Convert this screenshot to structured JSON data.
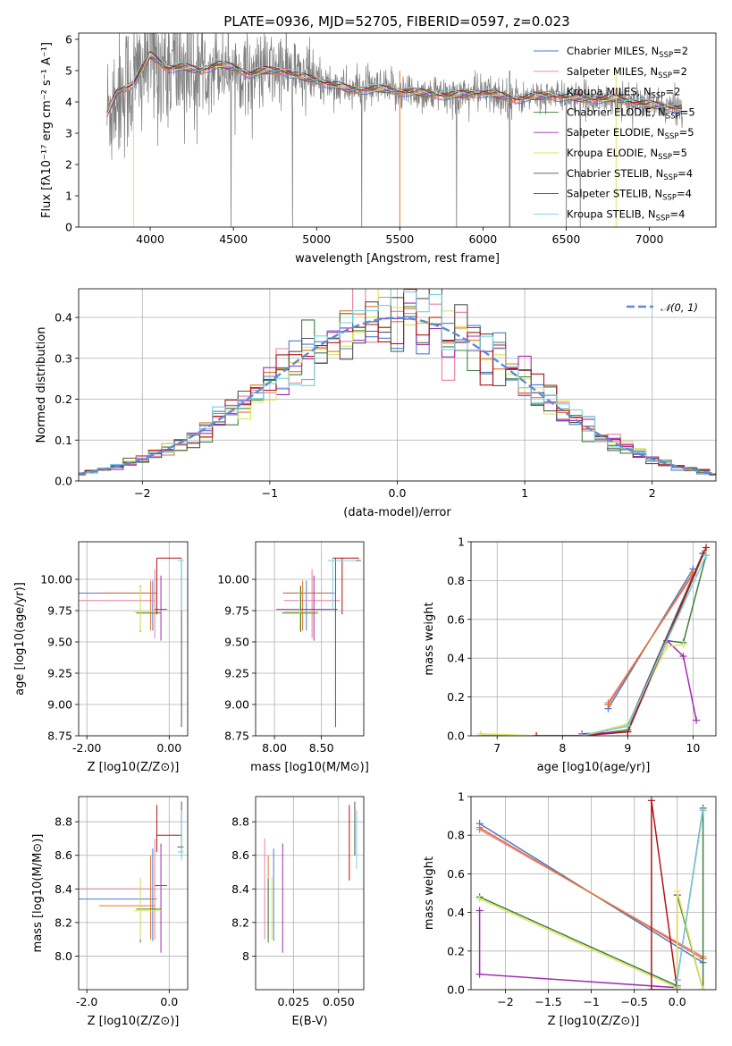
{
  "figure_title": "PLATE=0936, MJD=52705, FIBERID=0597, z=0.023",
  "model_names": [
    "Chabrier MILES",
    "Salpeter MILES",
    "Kroupa MILES",
    "Chabrier ELODIE",
    "Salpeter ELODIE",
    "Kroupa ELODIE",
    "Chabrier STELIB",
    "Salpeter STELIB",
    "Kroupa STELIB"
  ],
  "n_ssp": [
    2,
    2,
    2,
    5,
    5,
    5,
    4,
    4,
    4
  ],
  "colors": {
    "model": [
      "#4e79d4",
      "#ea7fa0",
      "#e3762a",
      "#3f7f3f",
      "#a12bb5",
      "#e2e45a",
      "#555555",
      "#b21414",
      "#76d0dc"
    ],
    "data": "#7f7f7f",
    "normal": "#5b8bd8",
    "grid": "#b0b0b0"
  },
  "chart_data": [
    {
      "id": "spectrum",
      "type": "line",
      "xlabel": "wavelength [Angstrom, rest frame]",
      "ylabel": "Flux [fλ10⁻¹⁷ erg cm⁻² s⁻¹ A⁻¹]",
      "xlim": [
        3570,
        7400
      ],
      "ylim": [
        0,
        6.2
      ],
      "xticks": [
        4000,
        4500,
        5000,
        5500,
        6000,
        6500,
        7000
      ],
      "yticks": [
        0,
        1,
        2,
        3,
        4,
        5,
        6
      ],
      "grid": false,
      "legend": "upper right",
      "continuum": {
        "x": [
          3740,
          3800,
          3900,
          4000,
          4100,
          4200,
          4300,
          4400,
          4500,
          4600,
          4700,
          4800,
          4900,
          5000,
          5200,
          5400,
          5600,
          5800,
          6000,
          6200,
          6400,
          6600,
          6800,
          7000,
          7200
        ],
        "y": [
          3.6,
          4.3,
          4.6,
          5.5,
          5.1,
          5.1,
          5.0,
          5.2,
          5.1,
          4.9,
          5.0,
          5.0,
          4.8,
          4.7,
          4.4,
          4.4,
          4.3,
          4.2,
          4.3,
          4.1,
          4.2,
          4.1,
          4.1,
          3.9,
          3.8
        ]
      }
    },
    {
      "id": "residuals",
      "type": "line",
      "xlabel": "(data-model)/error",
      "ylabel": "Normed distribution",
      "xlim": [
        -2.5,
        2.5
      ],
      "ylim": [
        0,
        0.47
      ],
      "xticks": [
        -2,
        -1,
        0,
        1,
        2
      ],
      "yticks": [
        0.0,
        0.1,
        0.2,
        0.3,
        0.4
      ],
      "grid": true,
      "legend": "upper right",
      "reference_curve": "𝒩(0, 1)",
      "bin_width": 0.1
    },
    {
      "id": "age_vs_Z",
      "type": "scatter",
      "xlabel": "Z [log10(Z/Z⊙)]",
      "ylabel": "age  [log10(age/yr)]",
      "xlim": [
        -2.2,
        0.45
      ],
      "ylim": [
        8.75,
        10.3
      ],
      "xticks": [
        -2,
        0
      ],
      "yticks": [
        8.75,
        9.0,
        9.25,
        9.5,
        9.75,
        10.0
      ],
      "grid": true,
      "series": [
        {
          "x": -0.4,
          "xerr": [
            1.9,
            0.1
          ],
          "y": 9.89,
          "yerr": [
            0.3,
            0.1
          ]
        },
        {
          "x": -0.35,
          "xerr": [
            1.9,
            0.0
          ],
          "y": 9.83,
          "yerr": [
            0.3,
            0.25
          ]
        },
        {
          "x": -0.45,
          "xerr": [
            1.25,
            0.1
          ],
          "y": 9.89,
          "yerr": [
            0.3,
            0.1
          ]
        },
        {
          "x": -0.7,
          "xerr": [
            0.1,
            0.5
          ],
          "y": 9.73,
          "yerr": [
            0.15,
            0.22
          ]
        },
        {
          "x": -0.2,
          "xerr": [
            0.15,
            0.15
          ],
          "y": 9.76,
          "yerr": [
            0.25,
            0.27
          ]
        },
        {
          "x": -0.7,
          "xerr": [
            0.15,
            0.5
          ],
          "y": 9.74,
          "yerr": [
            0.15,
            0.2
          ]
        },
        {
          "x": 0.3,
          "xerr": [
            0.1,
            0.05
          ],
          "y": 10.15,
          "yerr": [
            1.33,
            0.02
          ]
        },
        {
          "x": -0.3,
          "xerr": [
            0.0,
            0.6
          ],
          "y": 10.17,
          "yerr": [
            0.45,
            0.0
          ]
        },
        {
          "x": 0.3,
          "xerr": [
            0.1,
            0.05
          ],
          "y": 10.15,
          "yerr": [
            0.4,
            0.02
          ]
        }
      ]
    },
    {
      "id": "age_vs_mass",
      "type": "scatter",
      "xlabel": "mass [log10(M/M⊙)]",
      "ylabel": "",
      "xlim": [
        7.8,
        8.95
      ],
      "ylim": [
        8.75,
        10.3
      ],
      "xticks": [
        8.0,
        8.5
      ],
      "yticks": [
        8.75,
        9.0,
        9.25,
        9.5,
        9.75,
        10.0
      ],
      "grid": true,
      "series": [
        {
          "x": 8.34,
          "xerr": [
            0.25,
            0.3
          ],
          "y": 9.89,
          "yerr": [
            0.3,
            0.1
          ]
        },
        {
          "x": 8.4,
          "xerr": [
            0.3,
            0.3
          ],
          "y": 9.83,
          "yerr": [
            0.3,
            0.25
          ]
        },
        {
          "x": 8.3,
          "xerr": [
            0.2,
            0.3
          ],
          "y": 9.89,
          "yerr": [
            0.3,
            0.1
          ]
        },
        {
          "x": 8.28,
          "xerr": [
            0.2,
            0.18
          ],
          "y": 9.73,
          "yerr": [
            0.15,
            0.22
          ]
        },
        {
          "x": 8.42,
          "xerr": [
            0.4,
            0.25
          ],
          "y": 9.76,
          "yerr": [
            0.25,
            0.27
          ]
        },
        {
          "x": 8.27,
          "xerr": [
            0.17,
            0.2
          ],
          "y": 9.74,
          "yerr": [
            0.15,
            0.2
          ]
        },
        {
          "x": 8.65,
          "xerr": [
            0.05,
            0.27
          ],
          "y": 10.15,
          "yerr": [
            1.33,
            0.02
          ]
        },
        {
          "x": 8.72,
          "xerr": [
            0.1,
            0.18
          ],
          "y": 10.17,
          "yerr": [
            0.45,
            0.0
          ]
        },
        {
          "x": 8.62,
          "xerr": [
            0.05,
            0.25
          ],
          "y": 10.15,
          "yerr": [
            0.4,
            0.02
          ]
        }
      ]
    },
    {
      "id": "weight_vs_age",
      "type": "line",
      "xlabel": "age  [log10(age/yr)]",
      "ylabel": "mass weight",
      "xlim": [
        6.6,
        10.35
      ],
      "ylim": [
        0,
        1.0
      ],
      "xticks": [
        7,
        8,
        9,
        10
      ],
      "yticks": [
        0.0,
        0.2,
        0.4,
        0.6,
        0.8,
        1.0
      ],
      "grid": true,
      "series": [
        {
          "x": [
            8.7,
            10.0
          ],
          "y": [
            0.14,
            0.86
          ]
        },
        {
          "x": [
            8.7,
            10.0
          ],
          "y": [
            0.17,
            0.83
          ]
        },
        {
          "x": [
            8.7,
            10.0
          ],
          "y": [
            0.16,
            0.84
          ]
        },
        {
          "x": [
            6.75,
            7.6,
            8.3,
            9.0,
            9.6,
            9.85,
            10.2
          ],
          "y": [
            0.0,
            0.0,
            0.0,
            0.03,
            0.49,
            0.48,
            0.93
          ]
        },
        {
          "x": [
            8.3,
            9.0,
            9.6,
            9.85,
            10.05
          ],
          "y": [
            0.01,
            0.02,
            0.49,
            0.41,
            0.08
          ]
        },
        {
          "x": [
            6.75,
            7.6,
            8.3,
            9.0,
            9.6,
            9.85
          ],
          "y": [
            0.01,
            0.0,
            0.0,
            0.06,
            0.46,
            0.47
          ]
        },
        {
          "x": [
            8.3,
            9.0,
            10.15
          ],
          "y": [
            0.0,
            0.05,
            0.94
          ]
        },
        {
          "x": [
            7.6,
            8.3,
            9.0,
            10.2
          ],
          "y": [
            0.0,
            0.0,
            0.02,
            0.97
          ]
        },
        {
          "x": [
            8.3,
            9.0,
            10.2
          ],
          "y": [
            0.0,
            0.05,
            0.93
          ]
        }
      ]
    },
    {
      "id": "mass_vs_Z",
      "type": "scatter",
      "xlabel": "Z [log10(Z/Z⊙)]",
      "ylabel": "mass [log10(M/M⊙)]",
      "xlim": [
        -2.2,
        0.45
      ],
      "ylim": [
        7.8,
        8.95
      ],
      "xticks": [
        -2,
        0
      ],
      "yticks": [
        8.0,
        8.2,
        8.4,
        8.6,
        8.8
      ],
      "grid": true,
      "series": [
        {
          "x": -0.4,
          "xerr": [
            1.9,
            0.1
          ],
          "y": 8.34,
          "yerr": [
            0.25,
            0.3
          ]
        },
        {
          "x": -0.35,
          "xerr": [
            1.9,
            0.0
          ],
          "y": 8.4,
          "yerr": [
            0.3,
            0.3
          ]
        },
        {
          "x": -0.45,
          "xerr": [
            1.25,
            0.1
          ],
          "y": 8.3,
          "yerr": [
            0.2,
            0.3
          ]
        },
        {
          "x": -0.7,
          "xerr": [
            0.1,
            0.5
          ],
          "y": 8.28,
          "yerr": [
            0.2,
            0.18
          ]
        },
        {
          "x": -0.2,
          "xerr": [
            0.15,
            0.15
          ],
          "y": 8.42,
          "yerr": [
            0.4,
            0.25
          ]
        },
        {
          "x": -0.7,
          "xerr": [
            0.15,
            0.5
          ],
          "y": 8.27,
          "yerr": [
            0.17,
            0.2
          ]
        },
        {
          "x": 0.3,
          "xerr": [
            0.1,
            0.05
          ],
          "y": 8.65,
          "yerr": [
            0.05,
            0.27
          ]
        },
        {
          "x": -0.3,
          "xerr": [
            0.0,
            0.6
          ],
          "y": 8.72,
          "yerr": [
            0.1,
            0.18
          ]
        },
        {
          "x": 0.3,
          "xerr": [
            0.1,
            0.05
          ],
          "y": 8.62,
          "yerr": [
            0.05,
            0.25
          ]
        }
      ]
    },
    {
      "id": "mass_vs_ebv",
      "type": "scatter",
      "xlabel": "E(B-V)",
      "ylabel": "",
      "xlim": [
        0.004,
        0.064
      ],
      "ylim": [
        7.8,
        8.95
      ],
      "xticks": [
        0.025,
        0.05
      ],
      "yticks": [
        8.0,
        8.2,
        8.4,
        8.6,
        8.8
      ],
      "grid": true,
      "series": [
        {
          "x": 0.014,
          "y": 8.34,
          "yerr": [
            0.25,
            0.3
          ]
        },
        {
          "x": 0.009,
          "y": 8.4,
          "yerr": [
            0.3,
            0.3
          ]
        },
        {
          "x": 0.011,
          "y": 8.3,
          "yerr": [
            0.2,
            0.3
          ]
        },
        {
          "x": 0.011,
          "y": 8.28,
          "yerr": [
            0.2,
            0.18
          ]
        },
        {
          "x": 0.019,
          "y": 8.42,
          "yerr": [
            0.4,
            0.25
          ]
        },
        {
          "x": 0.013,
          "y": 8.27,
          "yerr": [
            0.17,
            0.2
          ]
        },
        {
          "x": 0.059,
          "y": 8.65,
          "yerr": [
            0.05,
            0.27
          ]
        },
        {
          "x": 0.056,
          "y": 8.72,
          "yerr": [
            0.27,
            0.18
          ]
        },
        {
          "x": 0.06,
          "y": 8.62,
          "yerr": [
            0.1,
            0.25
          ]
        }
      ]
    },
    {
      "id": "weight_vs_Z",
      "type": "line",
      "xlabel": "Z [log10(Z/Z⊙)]",
      "ylabel": "mass weight",
      "xlim": [
        -2.4,
        0.45
      ],
      "ylim": [
        0,
        1.0
      ],
      "xticks": [
        -2.0,
        -1.5,
        -1.0,
        -0.5,
        0.0
      ],
      "yticks": [
        0.0,
        0.2,
        0.4,
        0.6,
        0.8,
        1.0
      ],
      "grid": true,
      "series": [
        {
          "x": [
            -2.3,
            0.3
          ],
          "y": [
            0.86,
            0.14
          ]
        },
        {
          "x": [
            -2.3,
            0.3
          ],
          "y": [
            0.83,
            0.17
          ]
        },
        {
          "x": [
            -2.3,
            0.3
          ],
          "y": [
            0.84,
            0.16
          ]
        },
        {
          "x": [
            -2.3,
            0.0,
            0.0,
            0.3,
            0.3
          ],
          "y": [
            0.48,
            0.02,
            0.49,
            0.0,
            0.93
          ]
        },
        {
          "x": [
            -2.3,
            -2.3,
            0.0,
            0.0
          ],
          "y": [
            0.41,
            0.08,
            0.01,
            0.49
          ]
        },
        {
          "x": [
            -2.3,
            0.0,
            0.0,
            0.3
          ],
          "y": [
            0.47,
            0.01,
            0.51,
            0.0
          ]
        },
        {
          "x": [
            -0.3,
            0.0,
            0.0,
            0.3
          ],
          "y": [
            0.0,
            0.0,
            0.05,
            0.94
          ]
        },
        {
          "x": [
            -0.3,
            -0.3,
            0.0
          ],
          "y": [
            0.0,
            0.98,
            0.0
          ]
        },
        {
          "x": [
            0.0,
            0.0,
            0.3
          ],
          "y": [
            0.0,
            0.05,
            0.93
          ]
        }
      ]
    }
  ]
}
